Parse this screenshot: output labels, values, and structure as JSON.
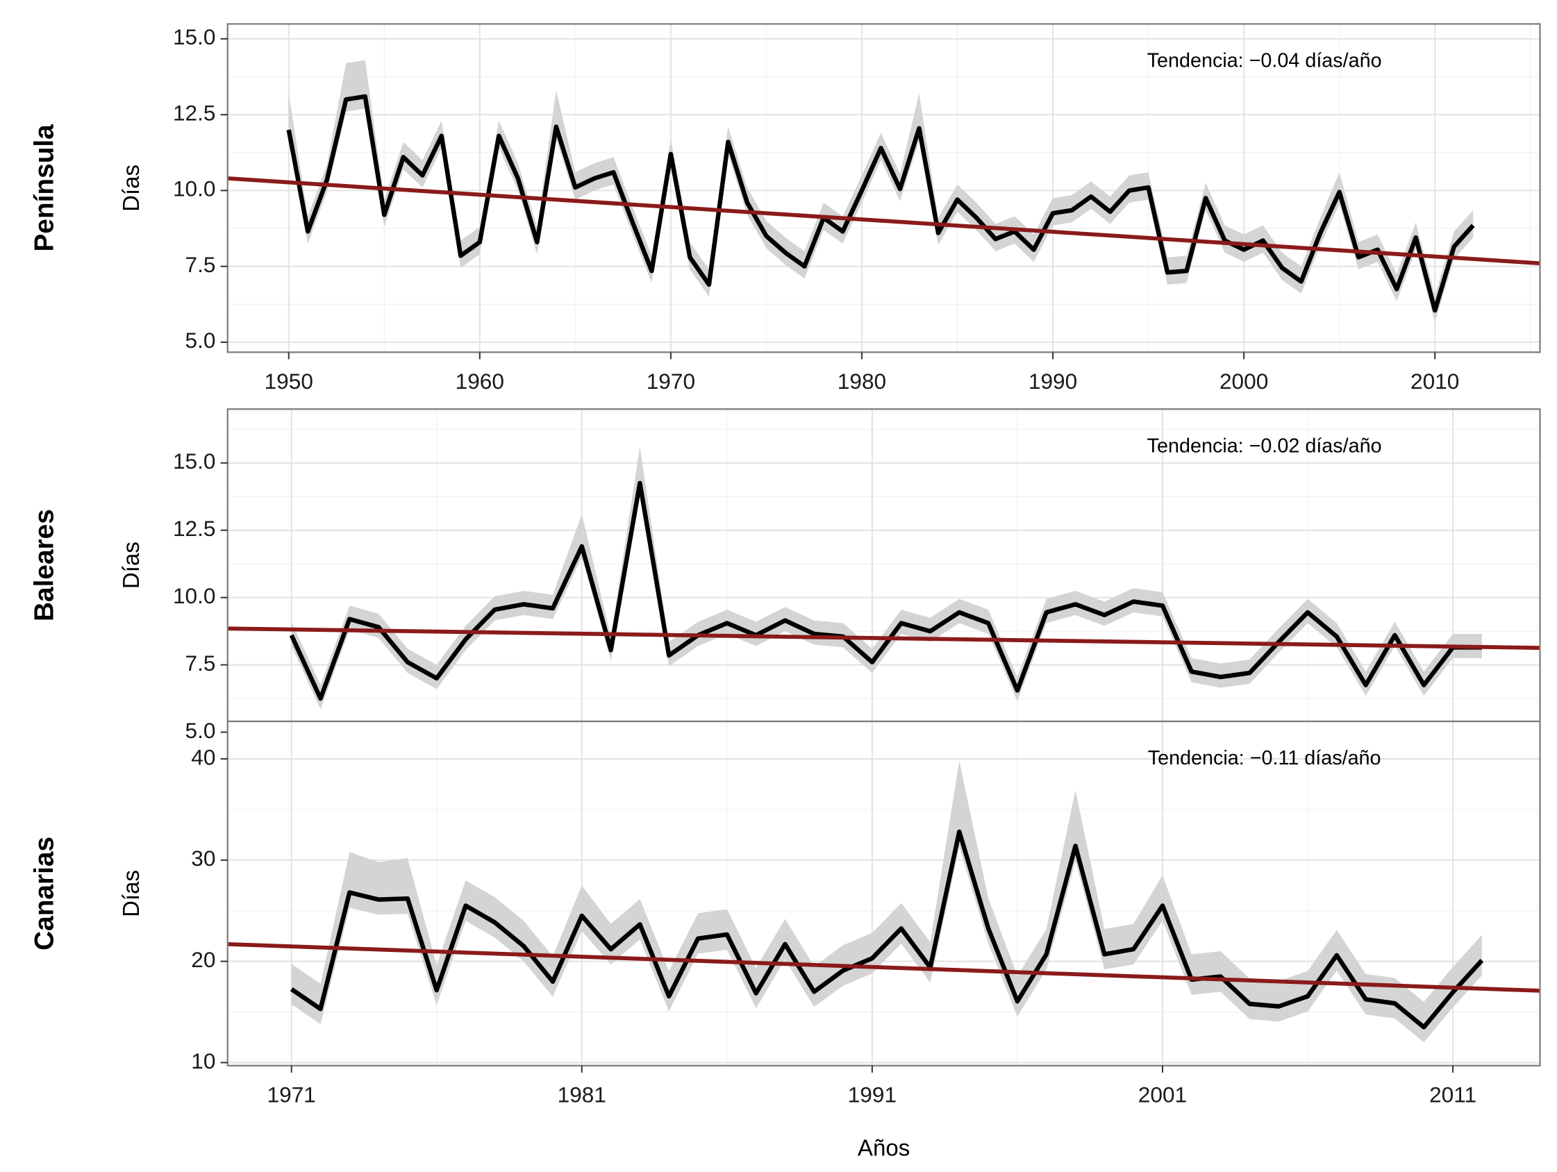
{
  "chart_data": [
    {
      "type": "line",
      "facet": "Península",
      "y_label": "Días",
      "annotation": "Tendencia: −0.04 días/año",
      "xlim": [
        1946.8,
        2015.5
      ],
      "ylim": [
        4.67,
        15.49
      ],
      "xticks": [
        1950,
        1960,
        1970,
        1980,
        1990,
        2000,
        2010
      ],
      "minor_xticks": [
        1955,
        1965,
        1975,
        1985,
        1995,
        2005,
        2015
      ],
      "yticks": [
        {
          "value": 5,
          "label": "5.0"
        },
        7.5,
        {
          "value": 10,
          "label": "10.0"
        },
        12.5,
        {
          "value": 15,
          "label": "15.0"
        }
      ],
      "minor_yticks": [
        6.25,
        8.75,
        11.25,
        13.75
      ],
      "xtick_labels": true,
      "grid": true,
      "color": "#000000",
      "band_color": "#d4d4d4",
      "trend_color": "#8b1a1a",
      "x": [
        1950,
        1951,
        1952,
        1953,
        1954,
        1955,
        1956,
        1957,
        1958,
        1959,
        1960,
        1961,
        1962,
        1963,
        1964,
        1965,
        1966,
        1967,
        1968,
        1969,
        1970,
        1971,
        1972,
        1973,
        1974,
        1975,
        1976,
        1977,
        1978,
        1979,
        1980,
        1981,
        1982,
        1983,
        1984,
        1985,
        1986,
        1987,
        1988,
        1989,
        1990,
        1991,
        1992,
        1993,
        1994,
        1995,
        1996,
        1997,
        1998,
        1999,
        2000,
        2001,
        2002,
        2003,
        2004,
        2005,
        2006,
        2007,
        2008,
        2009,
        2010,
        2011,
        2012
      ],
      "values": [
        12.0,
        8.65,
        10.35,
        13.0,
        13.1,
        9.2,
        11.1,
        10.5,
        11.8,
        7.85,
        8.3,
        11.8,
        10.4,
        8.3,
        12.1,
        10.1,
        10.4,
        10.6,
        8.95,
        7.35,
        11.2,
        7.8,
        6.9,
        11.6,
        9.6,
        8.5,
        7.95,
        7.5,
        9.1,
        8.65,
        10.0,
        11.4,
        10.05,
        12.05,
        8.6,
        9.7,
        9.1,
        8.4,
        8.65,
        8.05,
        9.25,
        9.35,
        9.8,
        9.3,
        10.0,
        10.1,
        7.3,
        7.35,
        9.75,
        8.35,
        8.05,
        8.35,
        7.45,
        7.0,
        8.6,
        9.95,
        7.8,
        8.05,
        6.75,
        8.45,
        6.05,
        8.15,
        8.85
      ],
      "band": {
        "lower": [
          11.6,
          8.25,
          9.95,
          12.6,
          12.7,
          8.8,
          10.7,
          10.1,
          11.4,
          7.45,
          7.9,
          11.4,
          10.0,
          7.9,
          11.7,
          9.7,
          10.0,
          10.2,
          8.55,
          6.95,
          10.8,
          7.4,
          6.5,
          11.2,
          9.2,
          8.1,
          7.55,
          7.1,
          8.7,
          8.25,
          9.6,
          11.0,
          9.65,
          11.65,
          8.2,
          9.3,
          8.7,
          8.0,
          8.25,
          7.65,
          8.85,
          8.95,
          9.4,
          8.9,
          9.6,
          9.7,
          6.9,
          6.95,
          9.35,
          7.95,
          7.65,
          7.95,
          7.05,
          6.6,
          8.2,
          9.55,
          7.4,
          7.65,
          6.35,
          8.05,
          5.65,
          7.75,
          8.45
        ],
        "upper": [
          13.2,
          9.15,
          10.85,
          14.2,
          14.3,
          9.7,
          11.6,
          11.0,
          12.3,
          8.35,
          8.8,
          12.3,
          10.9,
          8.8,
          13.3,
          10.6,
          10.9,
          11.1,
          9.45,
          7.85,
          11.7,
          8.3,
          7.4,
          12.1,
          10.1,
          9.0,
          8.45,
          8.0,
          9.6,
          9.15,
          10.5,
          11.9,
          10.55,
          13.2,
          9.1,
          10.2,
          9.6,
          8.9,
          9.15,
          8.55,
          9.75,
          9.85,
          10.3,
          9.8,
          10.5,
          10.6,
          7.8,
          7.85,
          10.25,
          8.85,
          8.55,
          8.85,
          7.95,
          7.5,
          9.1,
          10.6,
          8.3,
          8.55,
          7.25,
          8.95,
          6.55,
          8.65,
          9.35
        ]
      },
      "trend": {
        "x": [
          1946.8,
          2015.5
        ],
        "values": [
          10.4,
          7.6
        ]
      }
    },
    {
      "type": "line",
      "facet": "Baleares",
      "y_label": "Días",
      "annotation": "Tendencia: −0.02 días/año",
      "xlim": [
        1968.8,
        2014.0
      ],
      "ylim": [
        5.4,
        17.0
      ],
      "xticks": [
        1971,
        1981,
        1991,
        2001,
        2011
      ],
      "minor_xticks": [
        1976,
        1986,
        1996,
        2006
      ],
      "yticks": [
        {
          "value": 5,
          "label": "5.0"
        },
        7.5,
        {
          "value": 10,
          "label": "10.0"
        },
        12.5,
        {
          "value": 15,
          "label": "15.0"
        }
      ],
      "minor_yticks": [
        6.25,
        8.75,
        11.25,
        13.75,
        16.25
      ],
      "xtick_labels": false,
      "grid": true,
      "color": "#000000",
      "band_color": "#d4d4d4",
      "trend_color": "#8b1a1a",
      "x": [
        1971,
        1972,
        1973,
        1974,
        1975,
        1976,
        1977,
        1978,
        1979,
        1980,
        1981,
        1982,
        1983,
        1984,
        1985,
        1986,
        1987,
        1988,
        1989,
        1990,
        1991,
        1992,
        1993,
        1994,
        1995,
        1996,
        1997,
        1998,
        1999,
        2000,
        2001,
        2002,
        2003,
        2004,
        2005,
        2006,
        2007,
        2008,
        2009,
        2010,
        2011,
        2012
      ],
      "values": [
        8.6,
        6.25,
        9.2,
        8.9,
        7.6,
        7.0,
        8.45,
        9.55,
        9.75,
        9.6,
        11.9,
        8.05,
        14.25,
        7.85,
        8.6,
        9.05,
        8.6,
        9.15,
        8.65,
        8.55,
        7.6,
        9.05,
        8.75,
        9.45,
        9.05,
        6.55,
        9.45,
        9.75,
        9.35,
        9.85,
        9.7,
        7.25,
        7.05,
        7.2,
        8.35,
        9.45,
        8.55,
        6.75,
        8.6,
        6.75,
        8.15,
        8.15
      ],
      "band": {
        "lower": [
          8.2,
          5.85,
          8.8,
          8.5,
          7.2,
          6.6,
          8.05,
          9.15,
          9.35,
          9.2,
          11.5,
          7.65,
          13.85,
          7.45,
          8.2,
          8.65,
          8.2,
          8.75,
          8.25,
          8.15,
          7.2,
          8.65,
          8.35,
          9.05,
          8.65,
          6.15,
          9.05,
          9.35,
          8.95,
          9.45,
          9.3,
          6.85,
          6.65,
          6.8,
          7.95,
          9.05,
          8.15,
          6.35,
          8.2,
          6.35,
          7.75,
          7.75
        ],
        "upper": [
          9.1,
          6.75,
          9.7,
          9.4,
          8.1,
          7.5,
          8.95,
          10.05,
          10.25,
          10.1,
          13.1,
          8.55,
          15.6,
          8.35,
          9.1,
          9.55,
          9.1,
          9.65,
          9.15,
          9.05,
          8.1,
          9.55,
          9.25,
          9.95,
          9.55,
          7.05,
          9.95,
          10.25,
          9.85,
          10.35,
          10.2,
          7.75,
          7.55,
          7.7,
          8.85,
          9.95,
          9.05,
          7.25,
          9.1,
          7.25,
          8.65,
          8.65
        ]
      },
      "trend": {
        "x": [
          1968.8,
          2014.0
        ],
        "values": [
          8.85,
          8.13
        ]
      }
    },
    {
      "type": "line",
      "facet": "Canarias",
      "y_label": "Días",
      "x_label": "Años",
      "annotation": "Tendencia: −0.11 días/año",
      "xlim": [
        1968.8,
        2014.0
      ],
      "ylim": [
        9.7,
        43.7
      ],
      "xticks": [
        1971,
        1981,
        1991,
        2001,
        2011
      ],
      "minor_xticks": [
        1976,
        1986,
        1996,
        2006
      ],
      "yticks": [
        10,
        20,
        30,
        40
      ],
      "minor_yticks": [
        15,
        25,
        35
      ],
      "xtick_labels": true,
      "grid": true,
      "color": "#000000",
      "band_color": "#d4d4d4",
      "trend_color": "#8b1a1a",
      "x": [
        1971,
        1972,
        1973,
        1974,
        1975,
        1976,
        1977,
        1978,
        1979,
        1980,
        1981,
        1982,
        1983,
        1984,
        1985,
        1986,
        1987,
        1988,
        1989,
        1990,
        1991,
        1992,
        1993,
        1994,
        1995,
        1996,
        1997,
        1998,
        1999,
        2000,
        2001,
        2002,
        2003,
        2004,
        2005,
        2006,
        2007,
        2008,
        2009,
        2010,
        2011,
        2012
      ],
      "values": [
        17.25,
        15.3,
        26.8,
        26.1,
        26.2,
        17.15,
        25.5,
        23.85,
        21.5,
        18.0,
        24.5,
        21.2,
        23.65,
        16.55,
        22.25,
        22.65,
        16.85,
        21.7,
        17.0,
        19.1,
        20.3,
        23.25,
        19.4,
        32.8,
        23.25,
        16.05,
        20.7,
        31.4,
        20.7,
        21.2,
        25.5,
        18.2,
        18.5,
        15.8,
        15.55,
        16.55,
        20.6,
        16.25,
        15.85,
        13.5,
        16.95,
        20.1
      ],
      "band": {
        "lower": [
          15.75,
          13.8,
          25.3,
          24.6,
          24.7,
          15.65,
          24.0,
          22.35,
          20.0,
          16.5,
          23.0,
          19.7,
          22.15,
          15.05,
          20.75,
          21.15,
          15.35,
          20.2,
          15.5,
          17.6,
          18.8,
          21.75,
          17.9,
          31.3,
          21.75,
          14.55,
          19.2,
          29.9,
          19.2,
          19.7,
          24.0,
          16.7,
          17.0,
          14.3,
          14.05,
          15.05,
          19.1,
          14.75,
          14.35,
          12.0,
          15.45,
          18.6
        ],
        "upper": [
          19.75,
          17.8,
          30.8,
          29.8,
          30.2,
          19.65,
          28.0,
          26.35,
          24.0,
          20.5,
          27.5,
          23.7,
          26.15,
          19.05,
          24.75,
          25.15,
          19.35,
          24.2,
          19.5,
          21.6,
          22.8,
          25.75,
          21.9,
          39.8,
          26.25,
          18.55,
          23.2,
          36.9,
          23.2,
          23.7,
          28.5,
          20.7,
          21.0,
          18.3,
          18.05,
          19.05,
          23.1,
          18.75,
          18.35,
          16.0,
          19.45,
          22.6
        ]
      },
      "trend": {
        "x": [
          1968.8,
          2014.0
        ],
        "values": [
          21.7,
          17.1
        ]
      }
    }
  ]
}
